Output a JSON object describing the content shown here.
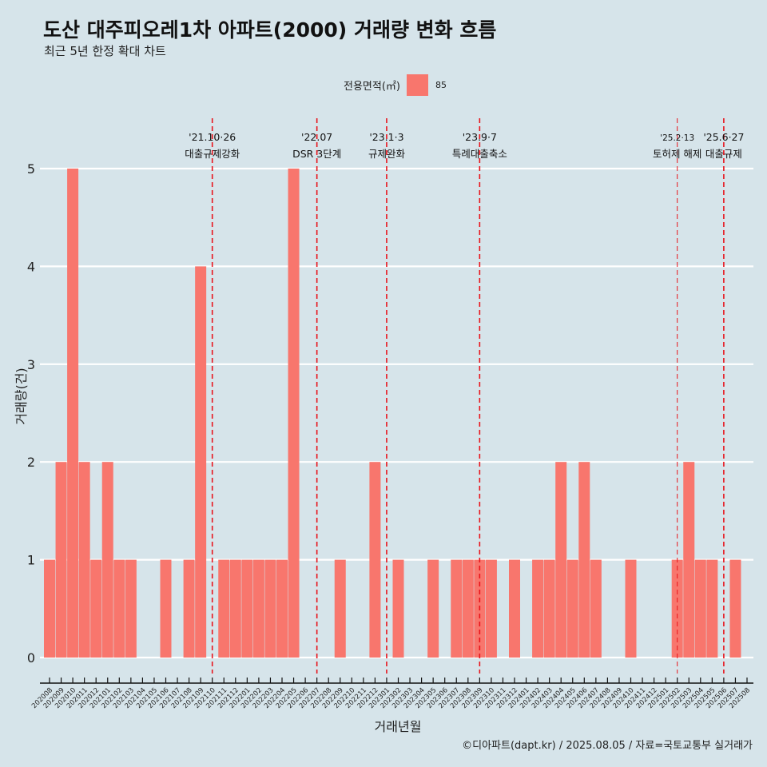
{
  "colors": {
    "bar": "#f8766d",
    "event_line": "#e8141c",
    "grid": "#ffffff",
    "background": "#d6e4ea"
  },
  "chart_data": {
    "type": "bar",
    "title": "도산 대주피오레1차 아파트(2000) 거래량 변화 흐름",
    "subtitle": "최근 5년 한정 확대 차트",
    "xlabel": "거래년월",
    "ylabel": "거래량(건)",
    "ylim": [
      -0.25,
      5.5
    ],
    "yticks": [
      0,
      1,
      2,
      3,
      4,
      5
    ],
    "grid": "horizontal",
    "legend": {
      "title": "전용면적(㎡)",
      "placement": "top",
      "entries": [
        "85"
      ]
    },
    "categories": [
      "202008",
      "202009",
      "202010",
      "202011",
      "202012",
      "202101",
      "202102",
      "202103",
      "202104",
      "202105",
      "202106",
      "202107",
      "202108",
      "202109",
      "202110",
      "202111",
      "202112",
      "202201",
      "202202",
      "202203",
      "202204",
      "202205",
      "202206",
      "202207",
      "202208",
      "202209",
      "202210",
      "202211",
      "202212",
      "202301",
      "202302",
      "202303",
      "202304",
      "202305",
      "202306",
      "202307",
      "202308",
      "202309",
      "202310",
      "202311",
      "202312",
      "202401",
      "202402",
      "202403",
      "202404",
      "202405",
      "202406",
      "202407",
      "202408",
      "202409",
      "202410",
      "202411",
      "202412",
      "202501",
      "202502",
      "202503",
      "202504",
      "202505",
      "202506",
      "202507",
      "202508"
    ],
    "series": [
      {
        "name": "85",
        "values": [
          1,
          2,
          5,
          2,
          1,
          2,
          1,
          1,
          0,
          0,
          1,
          0,
          1,
          4,
          0,
          1,
          1,
          1,
          1,
          1,
          1,
          5,
          0,
          0,
          0,
          1,
          0,
          0,
          2,
          0,
          1,
          0,
          0,
          1,
          0,
          1,
          1,
          1,
          1,
          0,
          1,
          0,
          1,
          1,
          2,
          1,
          2,
          1,
          0,
          0,
          1,
          0,
          0,
          0,
          1,
          2,
          1,
          1,
          0,
          1,
          0
        ]
      }
    ],
    "annotations": [
      {
        "x": "202110",
        "date": "'21.10·26",
        "label": "대출규제강화",
        "style": "bold"
      },
      {
        "x": "202207",
        "date": "'22.07",
        "label": "DSR 3단계",
        "style": "bold"
      },
      {
        "x": "202301",
        "date": "'23.1·3",
        "label": "규제완화",
        "style": "bold"
      },
      {
        "x": "202309",
        "date": "'23.9·7",
        "label": "특례대출축소",
        "style": "bold"
      },
      {
        "x": "202502",
        "date": "'25.2·13",
        "label": "토허제 해제",
        "style": "thin"
      },
      {
        "x": "202506",
        "date": "'25.6·27",
        "label": "대출규제",
        "style": "bold"
      }
    ]
  },
  "caption": "©디아파트(dapt.kr) / 2025.08.05 / 자료=국토교통부 실거래가"
}
